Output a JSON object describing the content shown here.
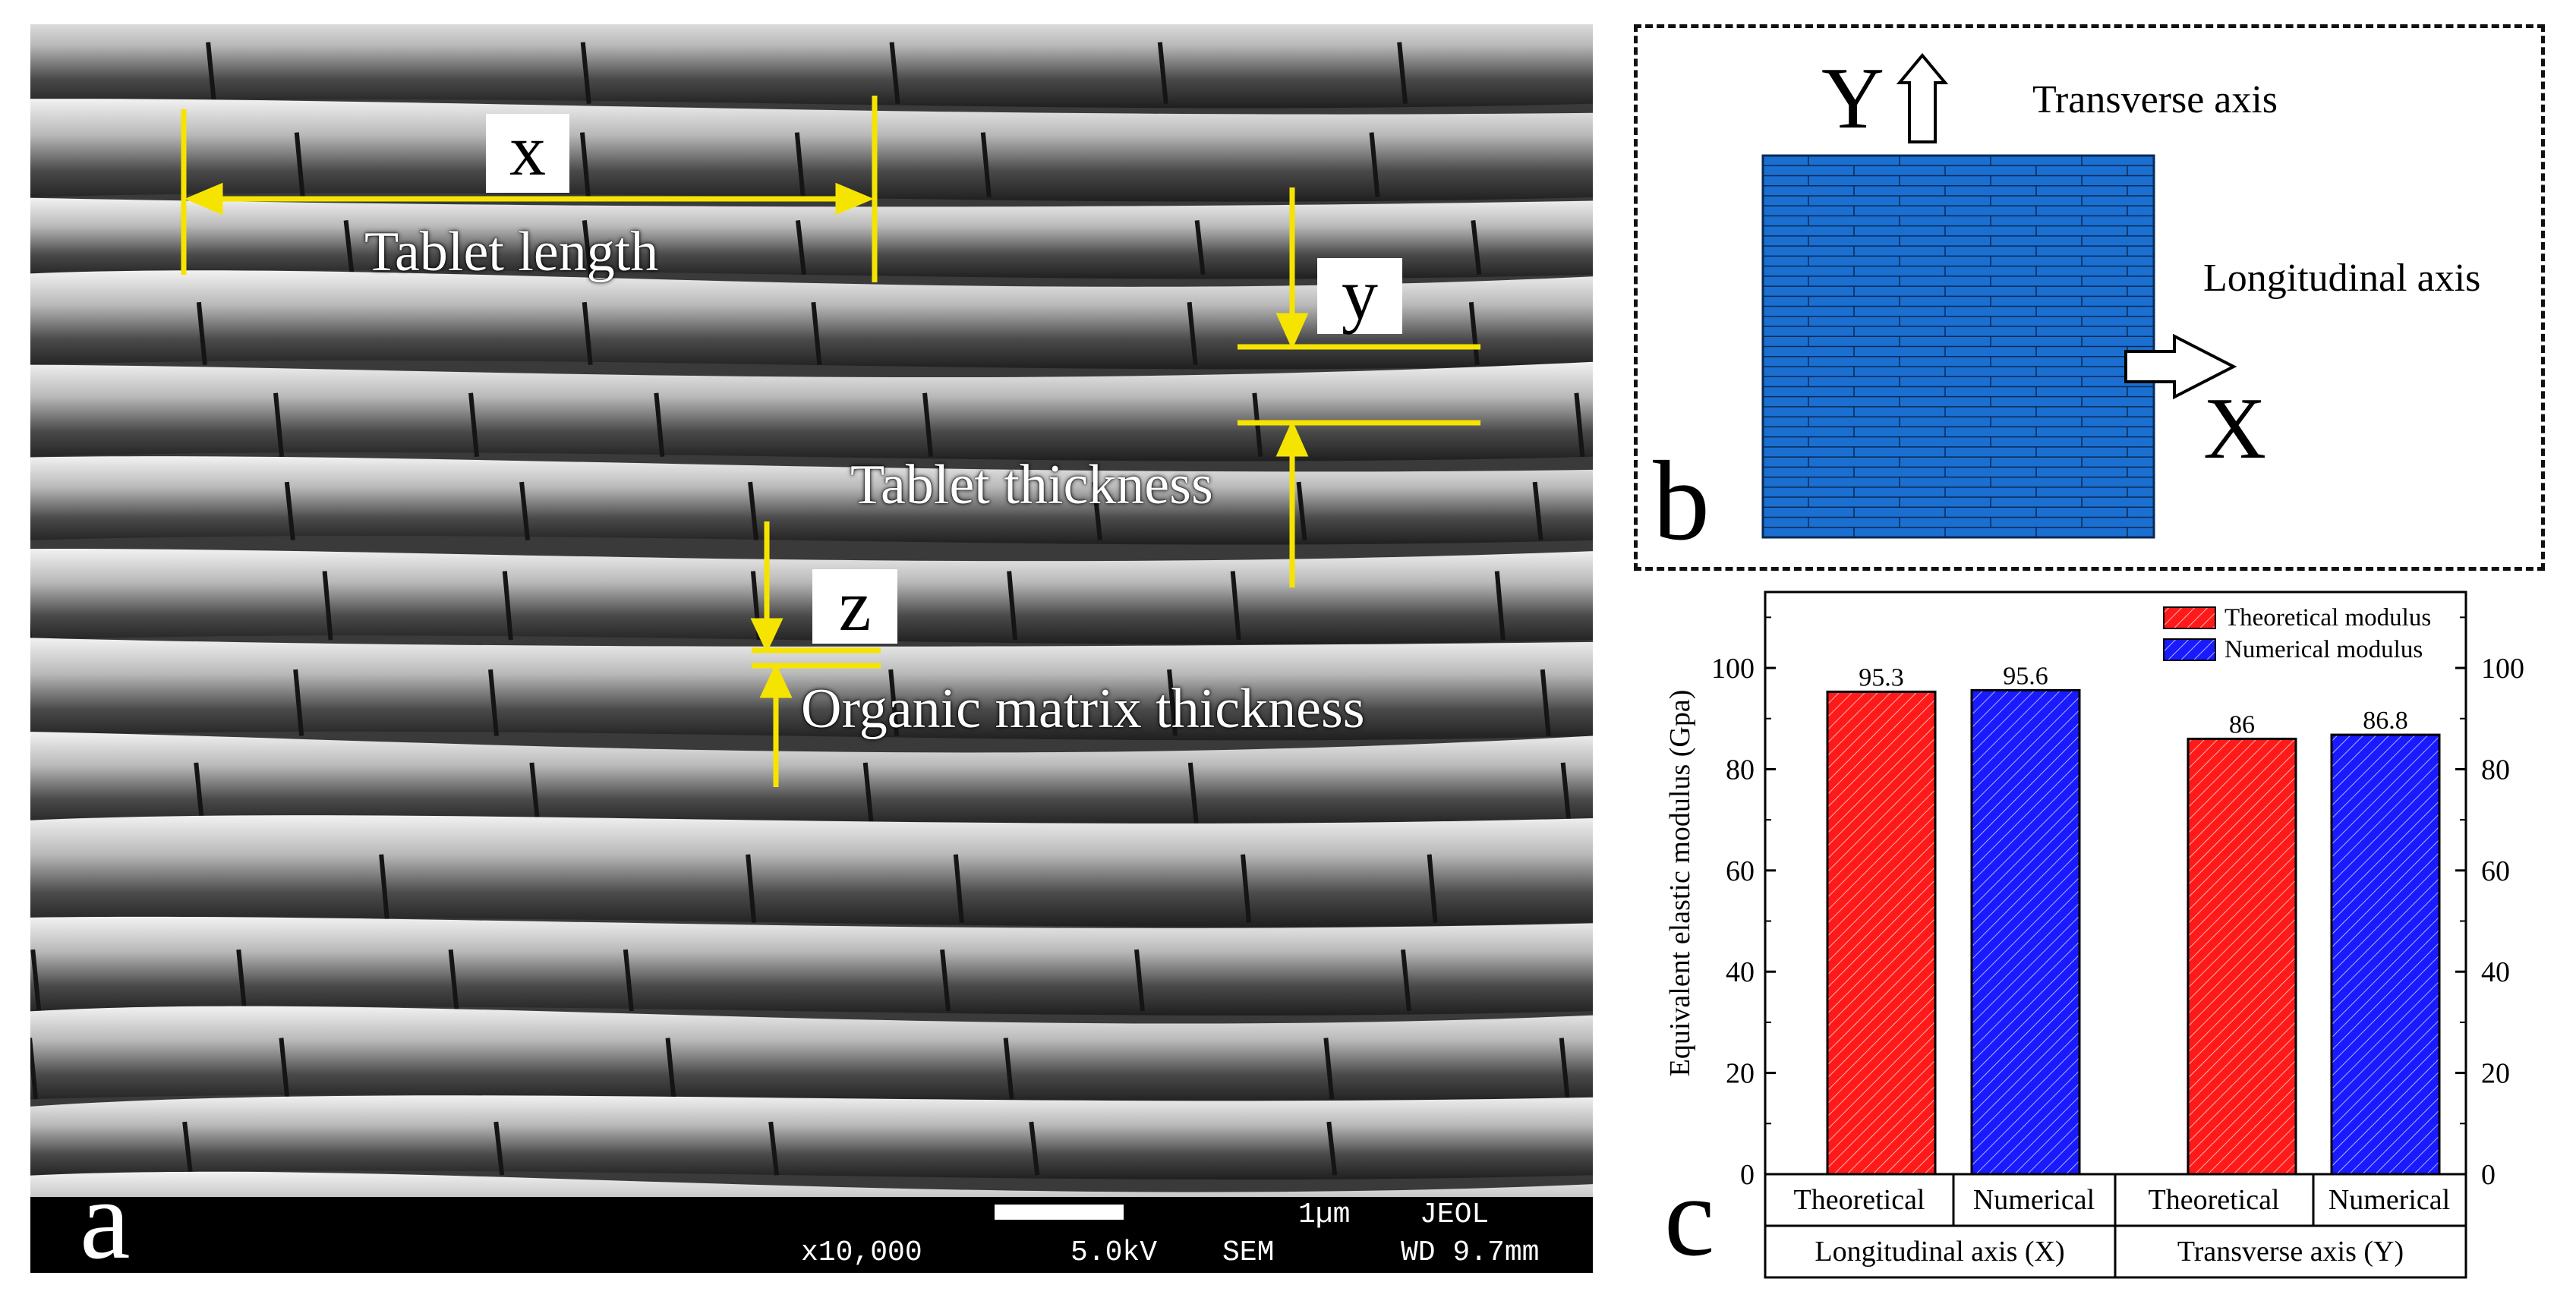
{
  "panel_a": {
    "letter": "a",
    "var_x": "x",
    "var_y": "y",
    "var_z": "z",
    "label_length": "Tablet length",
    "label_thickness": "Tablet thickness",
    "label_matrix": "Organic matrix thickness",
    "sem_info": {
      "scale_label": "1µm",
      "brand": "JEOL",
      "magnification": "x10,000",
      "voltage": "5.0kV",
      "mode": "SEM",
      "working_distance": "WD 9.7mm"
    },
    "annotation_color": "#f5e400"
  },
  "panel_b": {
    "letter": "b",
    "y_letter": "Y",
    "x_letter": "X",
    "transverse_label": "Transverse axis",
    "longitudinal_label": "Longitudinal axis",
    "mesh_color": "#1a6fd1"
  },
  "chart_data": {
    "letter": "c",
    "type": "bar",
    "ylabel": "Equivalent elastic modulus (Gpa)",
    "ylim": [
      0,
      115
    ],
    "yticks": [
      0,
      20,
      40,
      60,
      80,
      100
    ],
    "categories": [
      "Theoretical",
      "Numerical",
      "Theoretical",
      "Numerical"
    ],
    "groups": [
      "Longitudinal axis (X)",
      "Transverse axis (Y)"
    ],
    "values": [
      95.3,
      95.6,
      86,
      86.8
    ],
    "value_labels": [
      "95.3",
      "95.6",
      "86",
      "86.8"
    ],
    "bar_series": [
      0,
      1,
      0,
      1
    ],
    "series": [
      {
        "name": "Theoretical modulus",
        "color": "#ff1a1a"
      },
      {
        "name": "Numerical modulus",
        "color": "#1a1aff"
      }
    ],
    "legend": "top-right",
    "grid": false
  }
}
